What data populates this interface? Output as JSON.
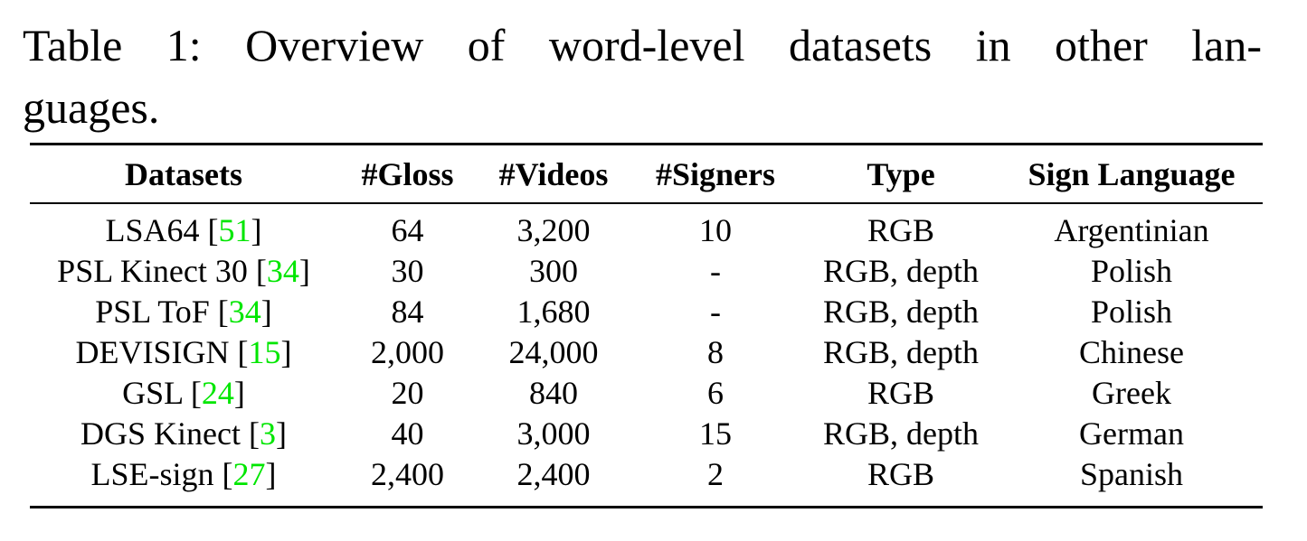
{
  "caption": {
    "line1": "Table 1: Overview of word-level datasets in other lan-",
    "line2": "guages."
  },
  "table": {
    "headers": [
      "Datasets",
      "#Gloss",
      "#Videos",
      "#Signers",
      "Type",
      "Sign Language"
    ],
    "rows": [
      {
        "name": "LSA64",
        "cite": "51",
        "gloss": "64",
        "videos": "3,200",
        "signers": "10",
        "type": "RGB",
        "language": "Argentinian"
      },
      {
        "name": "PSL Kinect 30",
        "cite": "34",
        "gloss": "30",
        "videos": "300",
        "signers": "-",
        "type": "RGB, depth",
        "language": "Polish"
      },
      {
        "name": "PSL ToF",
        "cite": "34",
        "gloss": "84",
        "videos": "1,680",
        "signers": "-",
        "type": "RGB, depth",
        "language": "Polish"
      },
      {
        "name": "DEVISIGN",
        "cite": "15",
        "gloss": "2,000",
        "videos": "24,000",
        "signers": "8",
        "type": "RGB, depth",
        "language": "Chinese"
      },
      {
        "name": "GSL",
        "cite": "24",
        "gloss": "20",
        "videos": "840",
        "signers": "6",
        "type": "RGB",
        "language": "Greek"
      },
      {
        "name": "DGS Kinect",
        "cite": "3",
        "gloss": "40",
        "videos": "3,000",
        "signers": "15",
        "type": "RGB, depth",
        "language": "German"
      },
      {
        "name": "LSE-sign",
        "cite": "27",
        "gloss": "2,400",
        "videos": "2,400",
        "signers": "2",
        "type": "RGB",
        "language": "Spanish"
      }
    ]
  },
  "colors": {
    "citation": "#00e600",
    "text": "#000000"
  }
}
